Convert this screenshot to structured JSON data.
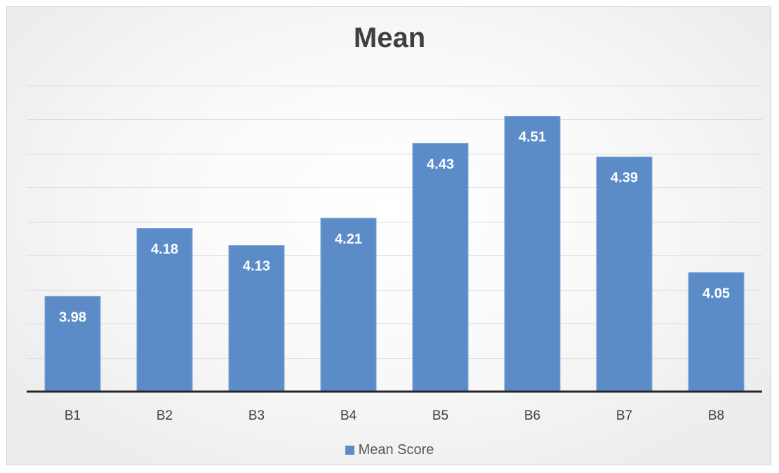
{
  "chart_data": {
    "type": "bar",
    "title": "Mean",
    "categories": [
      "B1",
      "B2",
      "B3",
      "B4",
      "B5",
      "B6",
      "B7",
      "B8"
    ],
    "series": [
      {
        "name": "Mean Score",
        "values": [
          3.98,
          4.18,
          4.13,
          4.21,
          4.43,
          4.51,
          4.39,
          4.05
        ]
      }
    ],
    "data_labels": [
      "3.98",
      "4.18",
      "4.13",
      "4.21",
      "4.43",
      "4.51",
      "4.39",
      "4.05"
    ],
    "xlabel": "",
    "ylabel": "",
    "ylim": [
      3.7,
      4.6
    ],
    "gridlines": [
      3.8,
      3.9,
      4.0,
      4.1,
      4.2,
      4.3,
      4.4,
      4.5,
      4.6
    ],
    "grid": true,
    "y_tick_labels_shown": false,
    "legend_position": "bottom",
    "colors": {
      "bar": "#5b8cc8",
      "bar_edge": "#7ea6d9",
      "grid": "#d9d9d9",
      "axis": "#262626",
      "data_label": "#ffffff",
      "tick_label": "#404040"
    }
  }
}
